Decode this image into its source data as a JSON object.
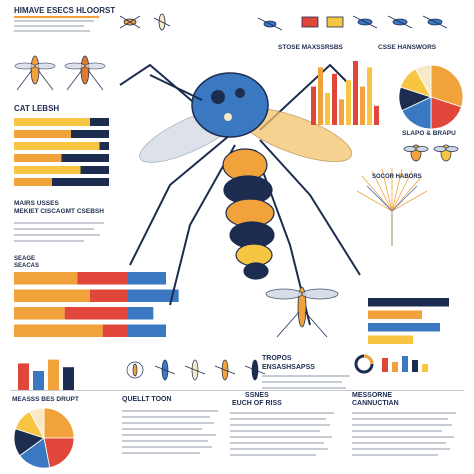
{
  "titles": {
    "header_left": "HIMAVE ESECS HLOORST",
    "left_mid": "CAT LEBSH",
    "left_lower": "MAIRS USSES\nMEKIET CISCAGMT CSEBSH",
    "left_lower2": "SEAGE\nSEACAS",
    "right_top": "STOSE MAXSSRSBS",
    "right_top2": "CSSE HANSWORS",
    "right_mid": "SLAPO & BRAPU",
    "right_tree": "SOCOR HABORS",
    "center_bottom": "TROPOS\nENSASHSAPSS",
    "bottom1": "MEASSS BES DRUPT",
    "bottom2": "QUELLT TOON",
    "bottom3": "SSNES\nEUCH OF RISS",
    "bottom4": "MESSORNE\nCANNUCTIAN"
  },
  "colors": {
    "navy": "#1d2d50",
    "orange": "#f2a23a",
    "red": "#e0463a",
    "blue": "#3a78c2",
    "cream": "#f8e9c6",
    "gold": "#f6c542"
  },
  "chart_data": [
    {
      "type": "bar",
      "location": "top-right",
      "title": "STOSE MAXSSRSBS",
      "values": [
        6,
        9,
        5,
        8,
        4,
        7,
        10,
        6,
        9,
        3
      ],
      "ylim": [
        0,
        10
      ]
    },
    {
      "type": "pie",
      "location": "top-right",
      "title": "CSSE HANSWORS",
      "values": [
        30,
        20,
        18,
        12,
        12,
        8
      ]
    },
    {
      "type": "bar",
      "location": "left",
      "title": "CAT LEBSH",
      "orientation": "horizontal",
      "values": [
        8,
        6,
        9,
        5,
        7,
        4
      ],
      "ylim": [
        0,
        10
      ]
    },
    {
      "type": "bar",
      "location": "left-lower",
      "title": "SEAGE SEACAS",
      "orientation": "horizontal",
      "series": [
        {
          "values": [
            5,
            6,
            4,
            7
          ]
        },
        {
          "values": [
            4,
            3,
            5,
            2
          ]
        },
        {
          "values": [
            3,
            4,
            2,
            3
          ]
        }
      ]
    },
    {
      "type": "bar",
      "location": "bottom-left",
      "values": [
        7,
        5,
        8,
        6
      ],
      "ylim": [
        0,
        10
      ]
    },
    {
      "type": "pie",
      "location": "bottom-left",
      "title": "MEASSS BES DRUPT",
      "values": [
        25,
        22,
        18,
        15,
        12,
        8
      ]
    },
    {
      "type": "bar",
      "location": "right-mid",
      "orientation": "horizontal",
      "values": [
        9,
        6,
        8,
        5
      ],
      "ylim": [
        0,
        10
      ]
    }
  ]
}
